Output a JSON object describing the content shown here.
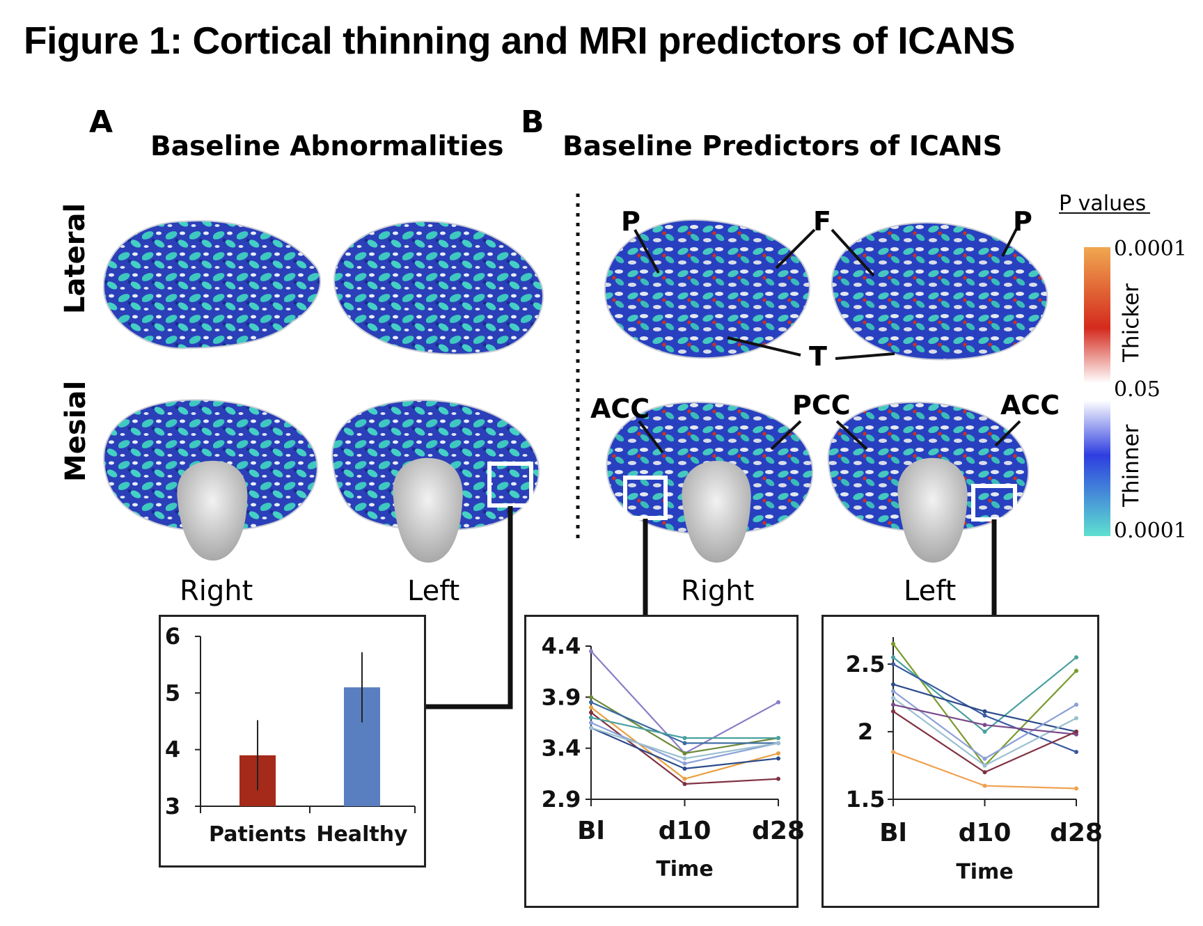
{
  "figure": {
    "title": "Figure 1: Cortical thinning and MRI predictors of ICANS"
  },
  "panel_a": {
    "letter": "A",
    "title": "Baseline Abnormalities",
    "row_labels": [
      "Lateral",
      "Mesial"
    ],
    "hemispheres": [
      "Right",
      "Left"
    ]
  },
  "panel_b": {
    "letter": "B",
    "title": "Baseline Predictors of ICANS",
    "hemispheres": [
      "Right",
      "Left"
    ],
    "region_labels": {
      "parietal": "P",
      "frontal": "F",
      "temporal": "T",
      "acc": "ACC",
      "pcc": "PCC"
    }
  },
  "color_scale": {
    "title": "P values",
    "top_value": "0.0001",
    "middle_value": "0.05",
    "bottom_value": "0.0001",
    "upper_label": "Thicker",
    "lower_label": "Thinner",
    "colors": {
      "thicker_max": "#f0a850",
      "thicker_mid": "#d42a1e",
      "threshold": "#ffffff",
      "thinner_mid": "#2e3ee0",
      "thinner_max": "#5ee0d0"
    }
  },
  "chart_data": [
    {
      "type": "bar",
      "categories": [
        "Patients",
        "Healthy"
      ],
      "values": [
        3.9,
        5.1
      ],
      "errors": [
        0.62,
        0.62
      ],
      "ylim": [
        3,
        6
      ],
      "yticks": [
        "3",
        "4",
        "5",
        "6"
      ],
      "colors": [
        "#a52a1a",
        "#5a7fc0"
      ],
      "grid": false
    },
    {
      "type": "line",
      "categories": [
        "Bl",
        "d10",
        "d28"
      ],
      "xlabel": "Time",
      "ylim": [
        2.9,
        4.4
      ],
      "yticks": [
        "2.9",
        "3.4",
        "3.9",
        "4.4"
      ],
      "grid": false,
      "series": [
        {
          "values": [
            4.35,
            3.35,
            3.85
          ],
          "color": "#8c7cc8"
        },
        {
          "values": [
            3.9,
            3.35,
            3.5
          ],
          "color": "#6a8a3a"
        },
        {
          "values": [
            3.85,
            3.45,
            3.45
          ],
          "color": "#3a6aa0"
        },
        {
          "values": [
            3.8,
            3.1,
            3.35
          ],
          "color": "#e8a040"
        },
        {
          "values": [
            3.75,
            3.05,
            3.1
          ],
          "color": "#803040"
        },
        {
          "values": [
            3.7,
            3.5,
            3.5
          ],
          "color": "#4aa0a0"
        },
        {
          "values": [
            3.65,
            3.25,
            3.45
          ],
          "color": "#8aa0d8"
        },
        {
          "values": [
            3.6,
            3.2,
            3.3
          ],
          "color": "#2a4a8a"
        },
        {
          "values": [
            3.6,
            3.3,
            3.45
          ],
          "color": "#9ac0d0"
        }
      ]
    },
    {
      "type": "line",
      "categories": [
        "Bl",
        "d10",
        "d28"
      ],
      "xlabel": "Time",
      "ylim": [
        1.5,
        2.7
      ],
      "yticks": [
        "1.5",
        "2",
        "2.5"
      ],
      "grid": false,
      "series": [
        {
          "values": [
            2.65,
            1.75,
            2.45
          ],
          "color": "#7a9a2a"
        },
        {
          "values": [
            2.55,
            2.0,
            2.55
          ],
          "color": "#4aa0a0"
        },
        {
          "values": [
            2.5,
            2.12,
            1.85
          ],
          "color": "#3a5aa0"
        },
        {
          "values": [
            2.35,
            2.15,
            2.0
          ],
          "color": "#2a4a8a"
        },
        {
          "values": [
            2.3,
            1.8,
            2.2
          ],
          "color": "#8aa0d8"
        },
        {
          "values": [
            2.25,
            1.75,
            2.1
          ],
          "color": "#9ac0d0"
        },
        {
          "values": [
            2.2,
            2.05,
            1.98
          ],
          "color": "#7a4a8a"
        },
        {
          "values": [
            2.15,
            1.7,
            2.0
          ],
          "color": "#803040"
        },
        {
          "values": [
            1.85,
            1.6,
            1.58
          ],
          "color": "#f0a050"
        }
      ]
    }
  ]
}
